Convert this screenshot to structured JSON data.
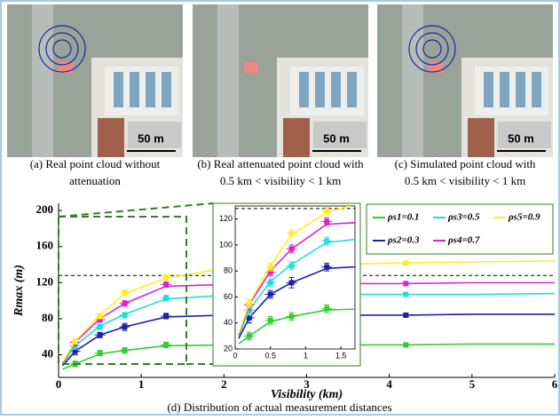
{
  "panels": [
    {
      "caption": [
        "(a) Real point cloud without",
        "attenuation"
      ],
      "scale": "50 m"
    },
    {
      "caption": [
        "(b) Real attenuated point cloud with",
        "0.5 km < visibility < 1 km"
      ],
      "scale": "50 m"
    },
    {
      "caption": [
        "(c) Simulated point cloud with",
        "0.5 km < visibility < 1 km"
      ],
      "scale": "50 m"
    }
  ],
  "chart_data": {
    "type": "line",
    "caption": "(d) Distribution of actual measurement distances",
    "xlabel": "Visibility (km)",
    "ylabel": "Rmax (m)",
    "xlim": [
      0,
      6
    ],
    "xticks": [
      0,
      1,
      2,
      3,
      4,
      5,
      6
    ],
    "ylim": [
      15,
      208
    ],
    "yticks": [
      40,
      80,
      120,
      160,
      200
    ],
    "reference_y": 128,
    "x": [
      0.2,
      0.5,
      0.8,
      1.3,
      4.2
    ],
    "curve_x": [
      0.05,
      0.2,
      0.5,
      0.8,
      1.3,
      2,
      3,
      4.2,
      5,
      6
    ],
    "series": [
      {
        "name": "ρs1=0.1",
        "color": "#33cc33",
        "values": [
          30,
          42,
          45,
          51,
          51
        ],
        "errors": [
          3,
          3,
          3,
          3,
          2
        ],
        "curve": [
          24,
          30,
          41,
          45,
          50,
          51,
          51,
          51,
          52,
          52
        ]
      },
      {
        "name": "ρs2=0.3",
        "color": "#1f1fa8",
        "values": [
          44,
          62,
          71,
          83,
          84
        ],
        "errors": [
          4,
          3,
          4,
          3,
          2
        ],
        "curve": [
          28,
          44,
          62,
          71,
          82,
          84,
          84,
          84,
          85,
          85
        ]
      },
      {
        "name": "ρs3=0.5",
        "color": "#22dddd",
        "values": [
          50,
          71,
          84,
          103,
          107
        ],
        "errors": [
          4,
          3,
          3,
          3,
          2
        ],
        "curve": [
          30,
          50,
          72,
          85,
          102,
          106,
          107,
          107,
          107,
          108
        ]
      },
      {
        "name": "ρs4=0.7",
        "color": "#dd22cc",
        "values": [
          54,
          79,
          97,
          118,
          119
        ],
        "errors": [
          4,
          3,
          3,
          3,
          2
        ],
        "curve": [
          31,
          54,
          80,
          97,
          116,
          118,
          119,
          119,
          120,
          120
        ]
      },
      {
        "name": "ρs5=0.9",
        "color": "#ffee22",
        "values": [
          55,
          83,
          109,
          126,
          142
        ],
        "errors": [
          3,
          3,
          3,
          3,
          2
        ],
        "curve": [
          32,
          55,
          84,
          108,
          125,
          136,
          140,
          142,
          143,
          144
        ]
      }
    ],
    "legend": "top-right",
    "inset": {
      "xlim": [
        0,
        1.7
      ],
      "xticks": [
        0,
        0.5,
        1,
        1.5
      ],
      "ylim": [
        20,
        130
      ],
      "yticks": [
        20,
        40,
        60,
        80,
        100,
        120
      ]
    }
  }
}
